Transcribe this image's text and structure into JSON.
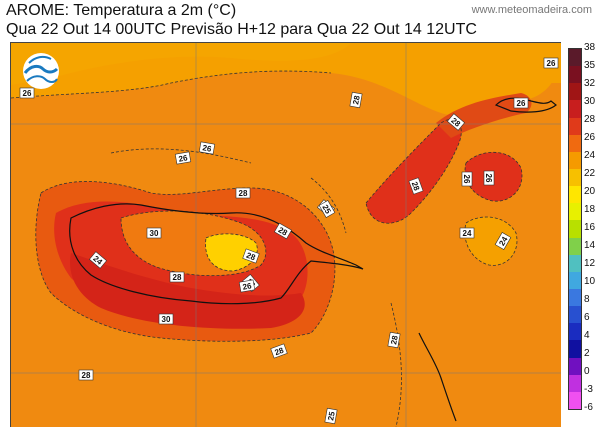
{
  "header": {
    "title_line1": "AROME: Temperatura a 2m (°C)",
    "title_line2": "Qua 22 Out 14 00UTC Previsão H+12 para Qua 22 Out 14 12UTC",
    "website": "www.meteomadeira.com"
  },
  "map": {
    "field": "Temperatura a 2m",
    "contour_labels": [
      "26",
      "26",
      "26",
      "28",
      "28",
      "28",
      "28",
      "26",
      "24",
      "30",
      "28",
      "26",
      "30",
      "28",
      "25",
      "28",
      "26",
      "28",
      "26",
      "24",
      "24",
      "26",
      "28",
      "28",
      "28",
      "25",
      "26"
    ]
  },
  "colorbar": {
    "labels": [
      "38",
      "35",
      "32",
      "30",
      "28",
      "26",
      "24",
      "22",
      "20",
      "18",
      "16",
      "14",
      "12",
      "10",
      "8",
      "6",
      "4",
      "2",
      "0",
      "-3",
      "-6"
    ],
    "colors": [
      "#5a1a2a",
      "#7a1020",
      "#a01515",
      "#c81e1e",
      "#e03a1a",
      "#f06a10",
      "#f59a00",
      "#f7c000",
      "#ffe600",
      "#e8f000",
      "#b8e000",
      "#80d04a",
      "#50c0c0",
      "#40a8e0",
      "#3a78e0",
      "#2850d0",
      "#1a2cc0",
      "#1010a0",
      "#7010c0",
      "#c030e0",
      "#f050f0"
    ]
  },
  "colors": {
    "background_orange": "#f5a000",
    "warm_orange": "#f07a10",
    "red": "#e0301a",
    "dark_red": "#c81e1e",
    "yellow": "#ffd700"
  }
}
